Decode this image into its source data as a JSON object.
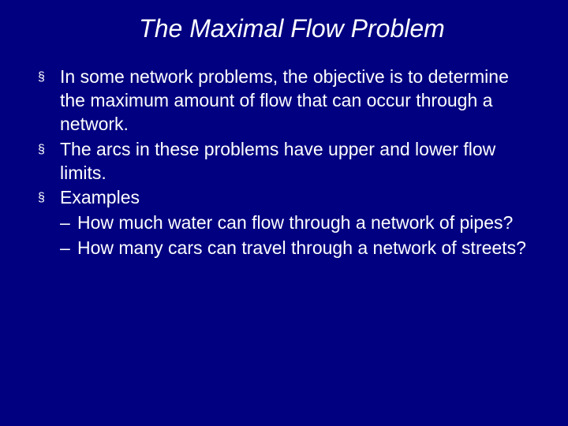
{
  "slide": {
    "title": "The Maximal Flow Problem",
    "background_color": "#000080",
    "title_color": "#ffffff",
    "body_color": "#ffffff",
    "title_fontsize": 32,
    "body_fontsize": 23,
    "bullets": [
      {
        "text": "In some network problems, the objective is to determine the maximum amount of flow that can occur through a network."
      },
      {
        "text": "The arcs in these problems have upper and lower flow limits."
      },
      {
        "text": "Examples",
        "subs": [
          {
            "text": "How much water can flow through a network of pipes?"
          },
          {
            "text": "How many cars can travel through a network of streets?"
          }
        ]
      }
    ]
  }
}
